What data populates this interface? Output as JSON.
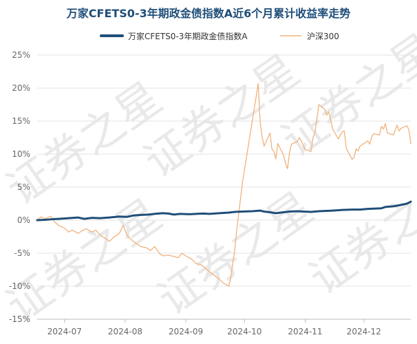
{
  "chart_data": {
    "type": "line",
    "title": "万家CFETS0-3年期政金债指数A近6个月累计收益率走势",
    "watermark": "证券之星",
    "ylim": [
      -15,
      25
    ],
    "yticks": [
      "25%",
      "20%",
      "15%",
      "10%",
      "5%",
      "0%",
      "-5%",
      "-10%",
      "-15%"
    ],
    "ytick_values": [
      25,
      20,
      15,
      10,
      5,
      0,
      -5,
      -10,
      -15
    ],
    "xlim": [
      "2024-06-17",
      "2024-12-25"
    ],
    "xticks": [
      {
        "date": "2024-07-01",
        "label": "2024-07"
      },
      {
        "date": "2024-08-01",
        "label": "2024-08"
      },
      {
        "date": "2024-09-01",
        "label": "2024-09"
      },
      {
        "date": "2024-10-01",
        "label": "2024-10"
      },
      {
        "date": "2024-11-01",
        "label": "2024-11"
      },
      {
        "date": "2024-12-01",
        "label": "2024-12"
      }
    ],
    "grid": "horizontal",
    "legend_position": "top",
    "series": [
      {
        "name": "万家CFETS0-3年期政金债指数A",
        "color": "#1f4e79",
        "points": [
          [
            "2024-06-17",
            0.0
          ],
          [
            "2024-06-21",
            0.05
          ],
          [
            "2024-06-25",
            0.15
          ],
          [
            "2024-06-28",
            0.2
          ],
          [
            "2024-07-03",
            0.3
          ],
          [
            "2024-07-08",
            0.4
          ],
          [
            "2024-07-11",
            0.2
          ],
          [
            "2024-07-15",
            0.35
          ],
          [
            "2024-07-19",
            0.3
          ],
          [
            "2024-07-24",
            0.4
          ],
          [
            "2024-07-29",
            0.55
          ],
          [
            "2024-08-02",
            0.5
          ],
          [
            "2024-08-05",
            0.7
          ],
          [
            "2024-08-09",
            0.8
          ],
          [
            "2024-08-13",
            0.85
          ],
          [
            "2024-08-16",
            0.95
          ],
          [
            "2024-08-20",
            1.05
          ],
          [
            "2024-08-23",
            1.0
          ],
          [
            "2024-08-26",
            0.85
          ],
          [
            "2024-08-29",
            0.95
          ],
          [
            "2024-09-03",
            0.9
          ],
          [
            "2024-09-06",
            0.95
          ],
          [
            "2024-09-10",
            1.0
          ],
          [
            "2024-09-13",
            0.95
          ],
          [
            "2024-09-18",
            1.05
          ],
          [
            "2024-09-23",
            1.15
          ],
          [
            "2024-09-26",
            1.25
          ],
          [
            "2024-09-30",
            1.3
          ],
          [
            "2024-10-05",
            1.35
          ],
          [
            "2024-10-09",
            1.45
          ],
          [
            "2024-10-11",
            1.3
          ],
          [
            "2024-10-14",
            1.2
          ],
          [
            "2024-10-17",
            1.05
          ],
          [
            "2024-10-21",
            1.2
          ],
          [
            "2024-10-24",
            1.3
          ],
          [
            "2024-10-28",
            1.35
          ],
          [
            "2024-10-31",
            1.3
          ],
          [
            "2024-11-04",
            1.25
          ],
          [
            "2024-11-08",
            1.35
          ],
          [
            "2024-11-12",
            1.4
          ],
          [
            "2024-11-15",
            1.45
          ],
          [
            "2024-11-20",
            1.55
          ],
          [
            "2024-11-25",
            1.6
          ],
          [
            "2024-11-29",
            1.6
          ],
          [
            "2024-12-03",
            1.7
          ],
          [
            "2024-12-06",
            1.75
          ],
          [
            "2024-12-10",
            1.8
          ],
          [
            "2024-12-12",
            2.0
          ],
          [
            "2024-12-16",
            2.1
          ],
          [
            "2024-12-19",
            2.25
          ],
          [
            "2024-12-23",
            2.5
          ],
          [
            "2024-12-25",
            2.8
          ]
        ]
      },
      {
        "name": "沪深300",
        "color": "#f0b27a",
        "points": [
          [
            "2024-06-17",
            0.0
          ],
          [
            "2024-06-19",
            0.5
          ],
          [
            "2024-06-21",
            0.2
          ],
          [
            "2024-06-24",
            0.6
          ],
          [
            "2024-06-26",
            -0.3
          ],
          [
            "2024-06-28",
            -0.8
          ],
          [
            "2024-07-01",
            -1.2
          ],
          [
            "2024-07-03",
            -1.8
          ],
          [
            "2024-07-05",
            -1.5
          ],
          [
            "2024-07-08",
            -2.0
          ],
          [
            "2024-07-10",
            -1.6
          ],
          [
            "2024-07-12",
            -1.3
          ],
          [
            "2024-07-15",
            -1.8
          ],
          [
            "2024-07-17",
            -1.5
          ],
          [
            "2024-07-19",
            -2.2
          ],
          [
            "2024-07-22",
            -2.8
          ],
          [
            "2024-07-24",
            -3.2
          ],
          [
            "2024-07-26",
            -2.6
          ],
          [
            "2024-07-29",
            -2.0
          ],
          [
            "2024-07-31",
            -0.8
          ],
          [
            "2024-08-02",
            -2.3
          ],
          [
            "2024-08-05",
            -3.2
          ],
          [
            "2024-08-07",
            -3.6
          ],
          [
            "2024-08-09",
            -4.0
          ],
          [
            "2024-08-12",
            -4.2
          ],
          [
            "2024-08-14",
            -4.6
          ],
          [
            "2024-08-16",
            -4.0
          ],
          [
            "2024-08-19",
            -5.2
          ],
          [
            "2024-08-21",
            -5.4
          ],
          [
            "2024-08-23",
            -5.3
          ],
          [
            "2024-08-26",
            -5.5
          ],
          [
            "2024-08-28",
            -5.7
          ],
          [
            "2024-08-30",
            -5.0
          ],
          [
            "2024-09-02",
            -5.6
          ],
          [
            "2024-09-04",
            -5.9
          ],
          [
            "2024-09-06",
            -6.5
          ],
          [
            "2024-09-09",
            -6.8
          ],
          [
            "2024-09-11",
            -7.3
          ],
          [
            "2024-09-13",
            -7.8
          ],
          [
            "2024-09-18",
            -8.9
          ],
          [
            "2024-09-20",
            -9.5
          ],
          [
            "2024-09-23",
            -10.0
          ],
          [
            "2024-09-24",
            -8.6
          ],
          [
            "2024-09-25",
            -6.5
          ],
          [
            "2024-09-26",
            -4.6
          ],
          [
            "2024-09-27",
            -1.5
          ],
          [
            "2024-09-30",
            5.8
          ],
          [
            "2024-10-08",
            20.7
          ],
          [
            "2024-10-09",
            14.8
          ],
          [
            "2024-10-10",
            12.6
          ],
          [
            "2024-10-11",
            11.2
          ],
          [
            "2024-10-14",
            13.2
          ],
          [
            "2024-10-15",
            10.8
          ],
          [
            "2024-10-16",
            10.4
          ],
          [
            "2024-10-17",
            9.3
          ],
          [
            "2024-10-18",
            11.6
          ],
          [
            "2024-10-21",
            9.8
          ],
          [
            "2024-10-22",
            8.6
          ],
          [
            "2024-10-23",
            7.8
          ],
          [
            "2024-10-24",
            10.2
          ],
          [
            "2024-10-25",
            11.5
          ],
          [
            "2024-10-28",
            11.9
          ],
          [
            "2024-10-29",
            12.5
          ],
          [
            "2024-10-30",
            12.0
          ],
          [
            "2024-10-31",
            11.3
          ],
          [
            "2024-11-01",
            10.7
          ],
          [
            "2024-11-04",
            10.4
          ],
          [
            "2024-11-05",
            12.5
          ],
          [
            "2024-11-06",
            13.2
          ],
          [
            "2024-11-07",
            15.4
          ],
          [
            "2024-11-08",
            17.5
          ],
          [
            "2024-11-11",
            16.8
          ],
          [
            "2024-11-12",
            15.9
          ],
          [
            "2024-11-13",
            16.4
          ],
          [
            "2024-11-14",
            15.3
          ],
          [
            "2024-11-15",
            13.8
          ],
          [
            "2024-11-18",
            12.3
          ],
          [
            "2024-11-19",
            12.9
          ],
          [
            "2024-11-20",
            13.4
          ],
          [
            "2024-11-21",
            13.5
          ],
          [
            "2024-11-22",
            10.9
          ],
          [
            "2024-11-25",
            9.2
          ],
          [
            "2024-11-26",
            9.5
          ],
          [
            "2024-11-27",
            10.8
          ],
          [
            "2024-11-28",
            10.5
          ],
          [
            "2024-11-29",
            11.2
          ],
          [
            "2024-12-02",
            11.8
          ],
          [
            "2024-12-03",
            12.0
          ],
          [
            "2024-12-04",
            11.5
          ],
          [
            "2024-12-05",
            12.6
          ],
          [
            "2024-12-06",
            13.1
          ],
          [
            "2024-12-09",
            12.9
          ],
          [
            "2024-12-10",
            14.2
          ],
          [
            "2024-12-11",
            13.8
          ],
          [
            "2024-12-12",
            14.6
          ],
          [
            "2024-12-13",
            13.2
          ],
          [
            "2024-12-16",
            12.9
          ],
          [
            "2024-12-17",
            13.6
          ],
          [
            "2024-12-18",
            14.4
          ],
          [
            "2024-12-19",
            13.5
          ],
          [
            "2024-12-20",
            13.9
          ],
          [
            "2024-12-23",
            14.3
          ],
          [
            "2024-12-24",
            13.7
          ],
          [
            "2024-12-25",
            11.6
          ]
        ]
      }
    ]
  }
}
